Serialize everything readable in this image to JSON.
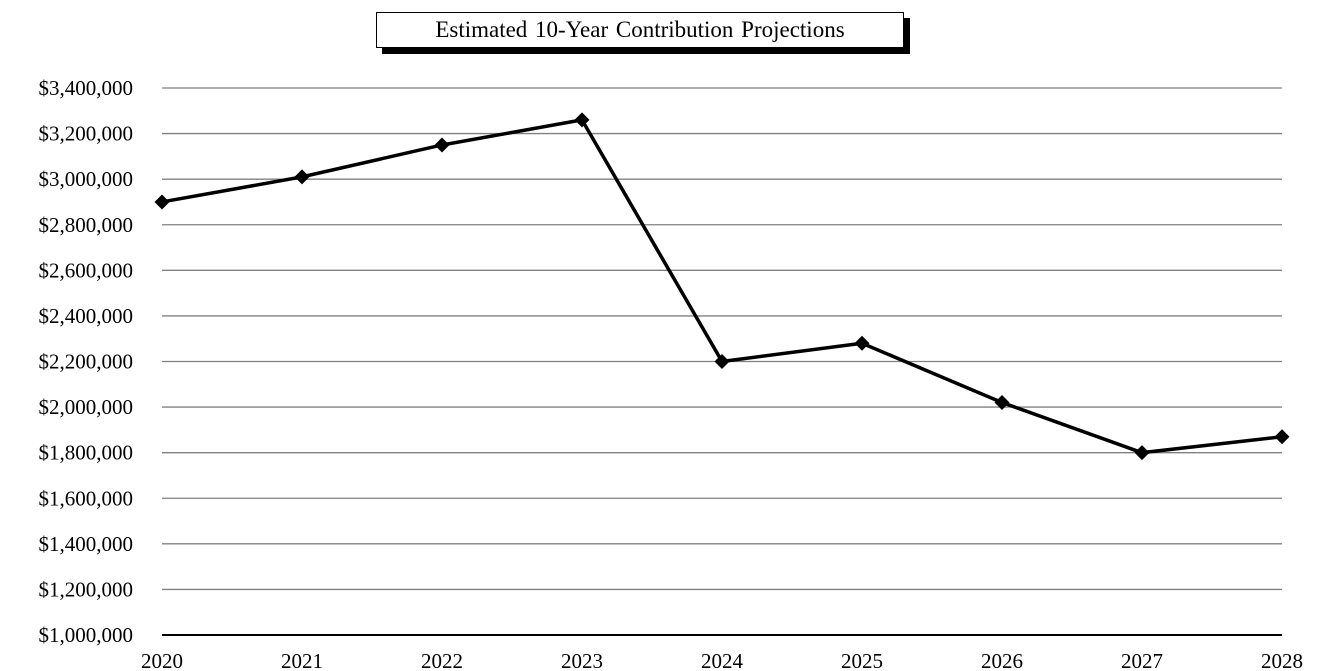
{
  "chart_data": {
    "type": "line",
    "title": "Estimated 10-Year Contribution Projections",
    "xlabel": "",
    "ylabel": "",
    "categories": [
      "2020",
      "2021",
      "2022",
      "2023",
      "2024",
      "2025",
      "2026",
      "2027",
      "2028"
    ],
    "series": [
      {
        "values": [
          2900000,
          3010000,
          3150000,
          3260000,
          2200000,
          2280000,
          2020000,
          1800000,
          1870000
        ]
      }
    ],
    "ylim": [
      1000000,
      3400000
    ],
    "y_ticks": [
      "$1,000,000",
      "$1,200,000",
      "$1,400,000",
      "$1,600,000",
      "$1,800,000",
      "$2,000,000",
      "$2,200,000",
      "$2,400,000",
      "$2,600,000",
      "$2,800,000",
      "$3,000,000",
      "$3,200,000",
      "$3,400,000"
    ],
    "grid": true,
    "legend": "none",
    "line_color": "#000000",
    "marker": "diamond",
    "grid_color": "#808080"
  }
}
